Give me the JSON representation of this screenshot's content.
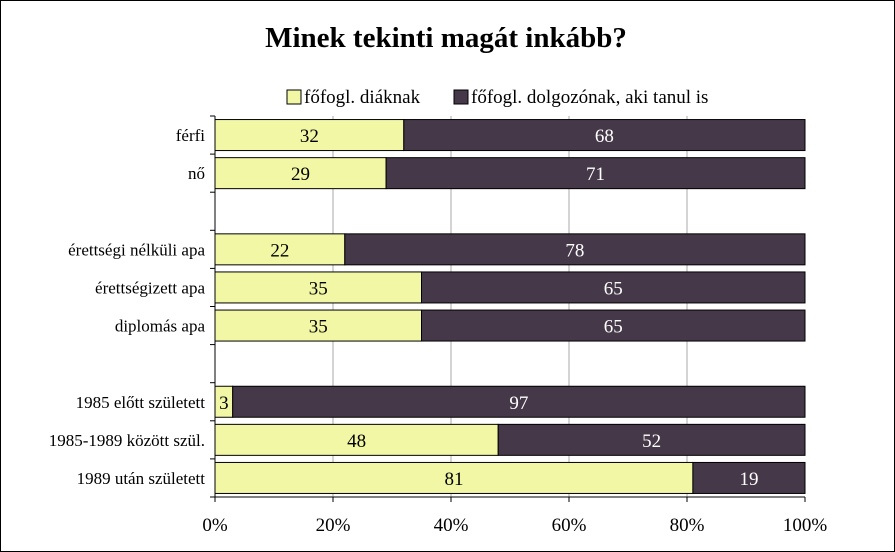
{
  "chart_data": {
    "type": "bar",
    "orientation": "horizontal",
    "stacked": true,
    "title": "Minek tekinti magát inkább?",
    "xlabel": "",
    "ylabel": "",
    "xlim": [
      0,
      100
    ],
    "grid": true,
    "legend_position": "top",
    "categories": [
      "férfi",
      "nő",
      "",
      "érettségi nélküli apa",
      "érettségizett apa",
      "diplomás apa",
      "",
      "1985 előtt született",
      "1985-1989 között szül.",
      "1989 után született"
    ],
    "series": [
      {
        "name": "főfogl. diáknak",
        "color": "#f2f7a6",
        "values": [
          32,
          29,
          null,
          22,
          35,
          35,
          null,
          3,
          48,
          81
        ]
      },
      {
        "name": "főfogl. dolgozónak, aki tanul is",
        "color": "#453848",
        "values": [
          68,
          71,
          null,
          78,
          65,
          65,
          null,
          97,
          52,
          19
        ]
      }
    ],
    "x_ticks": [
      "0%",
      "20%",
      "40%",
      "60%",
      "80%",
      "100%"
    ],
    "label_colors": [
      "#000000",
      "#ffffff"
    ]
  }
}
